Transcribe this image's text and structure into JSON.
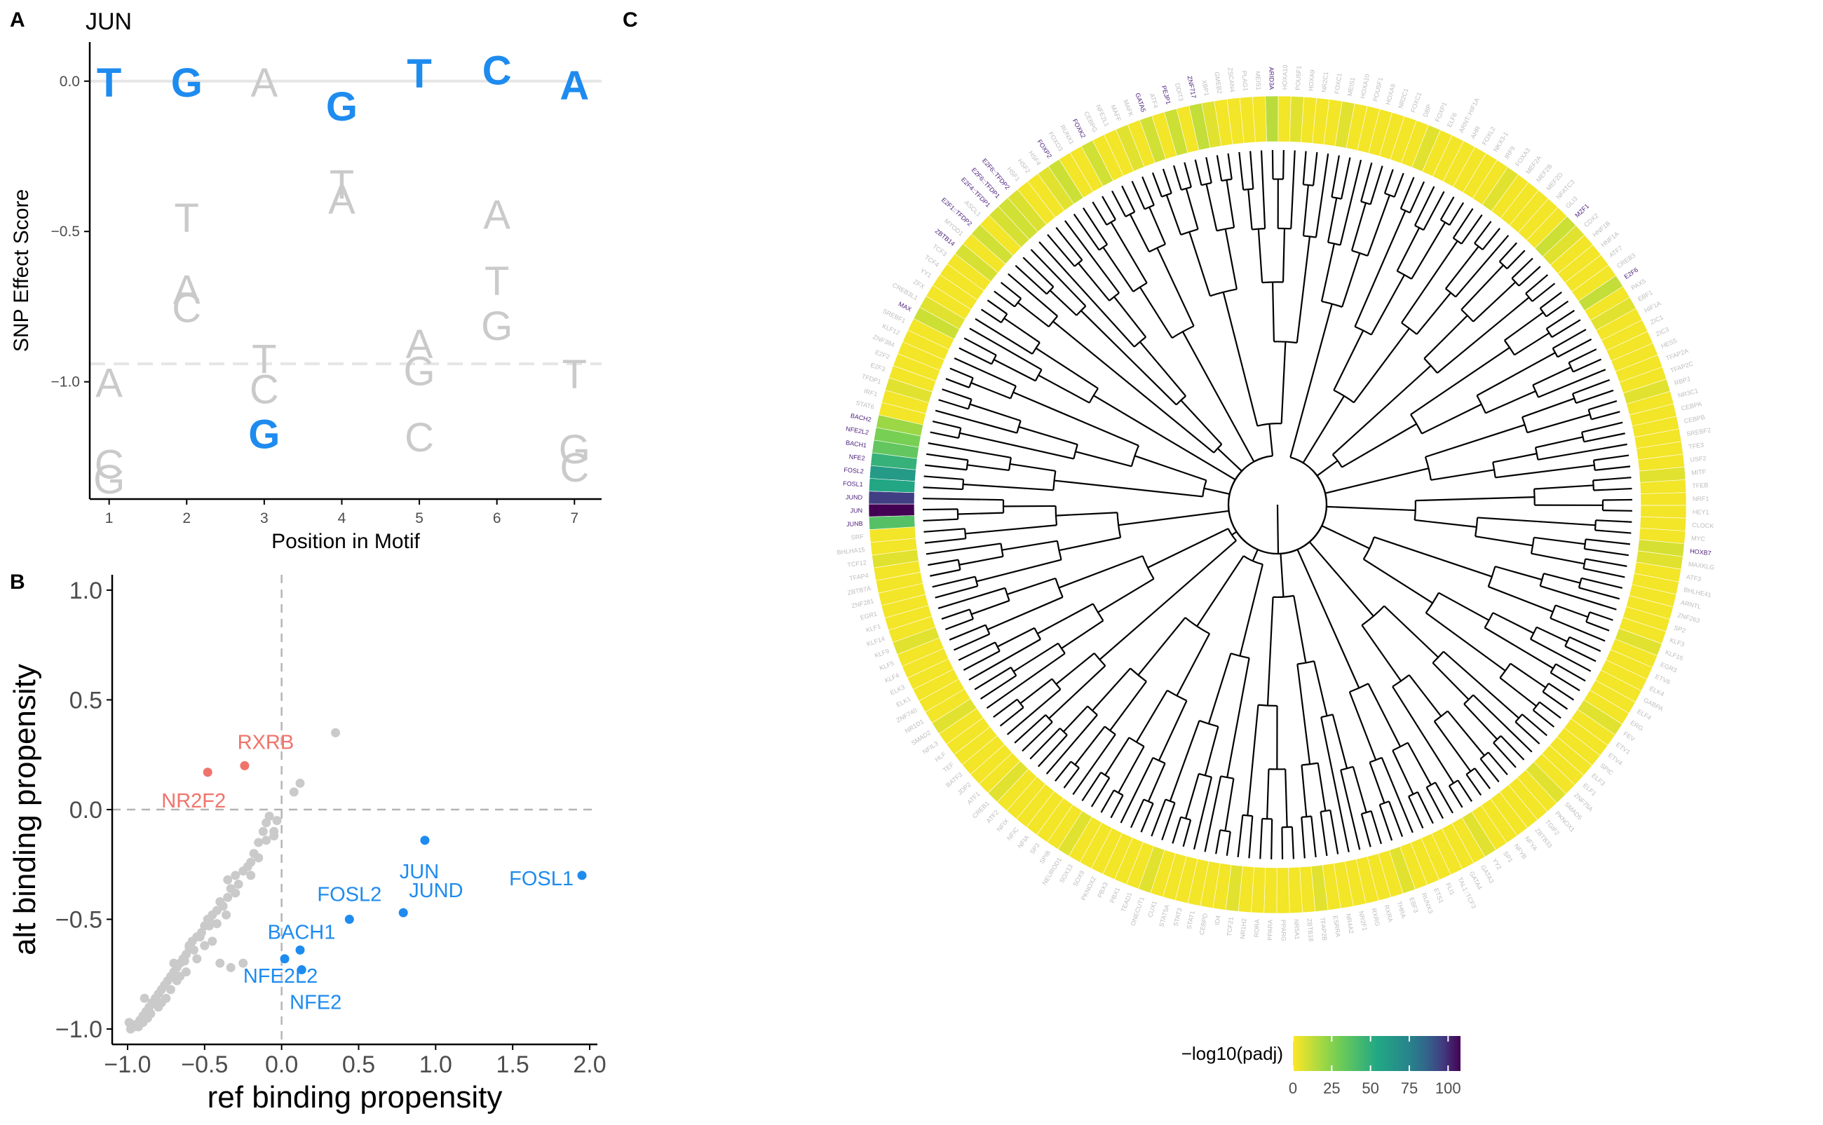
{
  "panels": {
    "a": {
      "letter": "A",
      "title": "JUN"
    },
    "b": {
      "letter": "B"
    },
    "c": {
      "letter": "C"
    }
  },
  "colors": {
    "blue": "#1E8BEF",
    "red": "#F0736B",
    "grey": "#CACACA",
    "grey_text": "#C9C9C9",
    "label_purple": "#4B1E7A"
  },
  "chart_data": [
    {
      "id": "snp-effect-logo",
      "type": "scatter",
      "title": "JUN",
      "xlabel": "Position in Motif",
      "ylabel": "SNP Effect Score",
      "xlim": [
        0.75,
        7.35
      ],
      "ylim": [
        -1.39,
        0.13
      ],
      "x_ticks": [
        1,
        2,
        3,
        4,
        5,
        6,
        7
      ],
      "y_ticks": [
        0.0,
        -0.5,
        -1.0
      ],
      "y_tick_labels": [
        "0.0",
        "−0.5",
        "−1.0"
      ],
      "reference_lines": [
        {
          "y": 0.0,
          "style": "solid"
        },
        {
          "y": -0.94,
          "style": "dashed"
        }
      ],
      "reference_bases": [
        {
          "position": 1,
          "base": "T",
          "score": 0.0
        },
        {
          "position": 2,
          "base": "G",
          "score": 0.0
        },
        {
          "position": 3,
          "base": "A",
          "score": 0.0
        },
        {
          "position": 4,
          "base": "G",
          "score": -0.08
        },
        {
          "position": 5,
          "base": "T",
          "score": 0.03
        },
        {
          "position": 6,
          "base": "C",
          "score": 0.04
        },
        {
          "position": 7,
          "base": "A",
          "score": -0.01
        }
      ],
      "alternate_bases": [
        {
          "position": 1,
          "base": "A",
          "score": -1.0,
          "highlight": false
        },
        {
          "position": 1,
          "base": "C",
          "score": -1.27,
          "highlight": false
        },
        {
          "position": 1,
          "base": "G",
          "score": -1.32,
          "highlight": false
        },
        {
          "position": 2,
          "base": "T",
          "score": -0.45,
          "highlight": false
        },
        {
          "position": 2,
          "base": "A",
          "score": -0.69,
          "highlight": false
        },
        {
          "position": 2,
          "base": "C",
          "score": -0.75,
          "highlight": false
        },
        {
          "position": 3,
          "base": "T",
          "score": -0.92,
          "highlight": false
        },
        {
          "position": 3,
          "base": "C",
          "score": -1.02,
          "highlight": false
        },
        {
          "position": 3,
          "base": "G",
          "score": -1.17,
          "highlight": true
        },
        {
          "position": 4,
          "base": "T",
          "score": -0.34,
          "highlight": false
        },
        {
          "position": 4,
          "base": "A",
          "score": -0.39,
          "highlight": false
        },
        {
          "position": 5,
          "base": "A",
          "score": -0.87,
          "highlight": false
        },
        {
          "position": 5,
          "base": "G",
          "score": -0.96,
          "highlight": false
        },
        {
          "position": 5,
          "base": "C",
          "score": -1.18,
          "highlight": false
        },
        {
          "position": 6,
          "base": "A",
          "score": -0.44,
          "highlight": false
        },
        {
          "position": 6,
          "base": "T",
          "score": -0.66,
          "highlight": false
        },
        {
          "position": 6,
          "base": "G",
          "score": -0.81,
          "highlight": false
        },
        {
          "position": 7,
          "base": "T",
          "score": -0.97,
          "highlight": false
        },
        {
          "position": 7,
          "base": "G",
          "score": -1.22,
          "highlight": false
        },
        {
          "position": 7,
          "base": "C",
          "score": -1.28,
          "highlight": false
        }
      ]
    },
    {
      "id": "binding-propensity-scatter",
      "type": "scatter",
      "xlabel": "ref binding propensity",
      "ylabel": "alt binding propensity",
      "xlim": [
        -1.1,
        2.05
      ],
      "ylim": [
        -1.07,
        1.07
      ],
      "x_ticks": [
        -1.0,
        -0.5,
        0.0,
        0.5,
        1.0,
        1.5,
        2.0
      ],
      "x_tick_labels": [
        "−1.0",
        "−0.5",
        "0.0",
        "0.5",
        "1.0",
        "1.5",
        "2.0"
      ],
      "y_ticks": [
        -1.0,
        -0.5,
        0.0,
        0.5,
        1.0
      ],
      "y_tick_labels": [
        "−1.0",
        "−0.5",
        "0.0",
        "0.5",
        "1.0"
      ],
      "reference_lines": [
        {
          "x": 0.0,
          "style": "dashed"
        },
        {
          "y": 0.0,
          "style": "dashed"
        }
      ],
      "labeled_points": [
        {
          "label": "FOSL1",
          "x": 1.95,
          "y": -0.3,
          "group": "decreased"
        },
        {
          "label": "JUN",
          "x": 0.93,
          "y": -0.14,
          "group": "decreased"
        },
        {
          "label": "JUND",
          "x": 0.79,
          "y": -0.47,
          "group": "decreased"
        },
        {
          "label": "FOSL2",
          "x": 0.44,
          "y": -0.5,
          "group": "decreased"
        },
        {
          "label": "BACH1",
          "x": 0.12,
          "y": -0.64,
          "group": "decreased"
        },
        {
          "label": "NFE2L2",
          "x": 0.02,
          "y": -0.68,
          "group": "decreased"
        },
        {
          "label": "NFE2",
          "x": 0.13,
          "y": -0.73,
          "group": "decreased"
        },
        {
          "label": "RXRB",
          "x": -0.24,
          "y": 0.2,
          "group": "increased"
        },
        {
          "label": "NR2F2",
          "x": -0.48,
          "y": 0.17,
          "group": "increased"
        }
      ],
      "other_points": [
        [
          0.35,
          0.35
        ],
        [
          0.12,
          0.12
        ],
        [
          0.08,
          0.08
        ],
        [
          -0.08,
          -0.03
        ],
        [
          -0.1,
          -0.06
        ],
        [
          -0.12,
          -0.1
        ],
        [
          -0.15,
          -0.15
        ],
        [
          -0.05,
          -0.12
        ],
        [
          -0.2,
          -0.24
        ],
        [
          -0.25,
          -0.28
        ],
        [
          -0.3,
          -0.3
        ],
        [
          -0.33,
          -0.36
        ],
        [
          -0.35,
          -0.4
        ],
        [
          -0.4,
          -0.42
        ],
        [
          -0.42,
          -0.46
        ],
        [
          -0.45,
          -0.48
        ],
        [
          -0.48,
          -0.5
        ],
        [
          -0.5,
          -0.53
        ],
        [
          -0.52,
          -0.56
        ],
        [
          -0.55,
          -0.58
        ],
        [
          -0.58,
          -0.6
        ],
        [
          -0.6,
          -0.63
        ],
        [
          -0.62,
          -0.66
        ],
        [
          -0.64,
          -0.68
        ],
        [
          -0.66,
          -0.7
        ],
        [
          -0.68,
          -0.72
        ],
        [
          -0.7,
          -0.74
        ],
        [
          -0.72,
          -0.76
        ],
        [
          -0.74,
          -0.78
        ],
        [
          -0.76,
          -0.8
        ],
        [
          -0.78,
          -0.82
        ],
        [
          -0.8,
          -0.84
        ],
        [
          -0.82,
          -0.86
        ],
        [
          -0.84,
          -0.88
        ],
        [
          -0.86,
          -0.9
        ],
        [
          -0.88,
          -0.92
        ],
        [
          -0.9,
          -0.94
        ],
        [
          -0.92,
          -0.96
        ],
        [
          -0.95,
          -0.98
        ],
        [
          -0.98,
          -1.0
        ],
        [
          -0.6,
          -0.62
        ],
        [
          -0.63,
          -0.69
        ],
        [
          -0.7,
          -0.7
        ],
        [
          -0.55,
          -0.68
        ],
        [
          -0.72,
          -0.82
        ],
        [
          -0.5,
          -0.62
        ],
        [
          -0.45,
          -0.6
        ],
        [
          -0.3,
          -0.38
        ],
        [
          -0.35,
          -0.32
        ],
        [
          -0.2,
          -0.3
        ],
        [
          -0.05,
          -0.1
        ],
        [
          -0.15,
          -0.22
        ],
        [
          -0.42,
          -0.52
        ],
        [
          -0.47,
          -0.53
        ],
        [
          -0.4,
          -0.7
        ],
        [
          -0.33,
          -0.72
        ],
        [
          -0.25,
          -0.7
        ],
        [
          -0.8,
          -0.9
        ],
        [
          -0.85,
          -0.93
        ],
        [
          -0.9,
          -0.97
        ],
        [
          -0.93,
          -0.99
        ],
        [
          -0.96,
          -0.99
        ],
        [
          -0.99,
          -0.97
        ],
        [
          -0.89,
          -0.86
        ],
        [
          -0.87,
          -0.95
        ],
        [
          -0.78,
          -0.88
        ],
        [
          -0.75,
          -0.86
        ],
        [
          -0.68,
          -0.78
        ],
        [
          -0.66,
          -0.76
        ],
        [
          -0.62,
          -0.74
        ],
        [
          -0.57,
          -0.64
        ],
        [
          -0.53,
          -0.58
        ],
        [
          -0.47,
          -0.5
        ],
        [
          -0.38,
          -0.44
        ],
        [
          -0.36,
          -0.48
        ],
        [
          -0.28,
          -0.34
        ],
        [
          -0.22,
          -0.26
        ],
        [
          -0.18,
          -0.2
        ],
        [
          -0.1,
          -0.14
        ],
        [
          -0.03,
          -0.05
        ]
      ]
    },
    {
      "id": "tf-dendrogram-heatmap",
      "type": "heatmap",
      "legend": {
        "title": "−log10(padj)",
        "ticks": [
          0,
          25,
          50,
          75,
          100
        ],
        "tick_labels": [
          "0",
          "25",
          "50",
          "75",
          "100"
        ],
        "range": [
          0,
          108
        ]
      },
      "highlighted_tfs": [
        {
          "label": "JUNB",
          "value": 38
        },
        {
          "label": "JUN",
          "value": 108
        },
        {
          "label": "JUND",
          "value": 96
        },
        {
          "label": "FOSL1",
          "value": 55
        },
        {
          "label": "FOSL2",
          "value": 62
        },
        {
          "label": "NFE2",
          "value": 48
        },
        {
          "label": "BACH1",
          "value": 34
        },
        {
          "label": "NFE2L2",
          "value": 28
        },
        {
          "label": "BACH2",
          "value": 20
        },
        {
          "label": "MAX",
          "value": 10
        },
        {
          "label": "ZBTB14",
          "value": 8
        },
        {
          "label": "E2F1::TFDP2",
          "value": 9
        },
        {
          "label": "E2F4::TFDP1",
          "value": 8
        },
        {
          "label": "E2F6::TFDP1",
          "value": 9
        },
        {
          "label": "E2F6::TFDP2",
          "value": 7
        },
        {
          "label": "FOXP2",
          "value": 10
        },
        {
          "label": "FOXK2",
          "value": 9
        },
        {
          "label": "HOXB7",
          "value": 8
        },
        {
          "label": "E2F6",
          "value": 12
        },
        {
          "label": "MZF1",
          "value": 10
        },
        {
          "label": "ARID3A",
          "value": 14
        },
        {
          "label": "ZNF717",
          "value": 12
        },
        {
          "label": "PEJP1",
          "value": 10
        },
        {
          "label": "GATA5",
          "value": 9
        }
      ],
      "other_tf_labels": [
        "MEIS1",
        "HOXA10",
        "POU5F1",
        "HOXA9",
        "NR2C1",
        "FOXC1",
        "DBP",
        "FOXP1",
        "ELF6",
        "ARNT::HIF1A",
        "AHR",
        "FOXL2",
        "NKX3-1",
        "IRF9",
        "FOXA3",
        "MEF2A",
        "MEF2B",
        "MEF2D",
        "NFATC3",
        "GLI3",
        "CDX2",
        "HNF1B",
        "HNF1A",
        "ATF7",
        "CREB3",
        "PAX5",
        "EBF1",
        "HIF1A",
        "ZIC1",
        "ZIC3",
        "HES5",
        "TFAP2A",
        "TFAP2C",
        "RBPJ",
        "NR3C1",
        "CEBPA",
        "CEBPB",
        "SREBF2",
        "TFE3",
        "USF2",
        "MITF",
        "TFEB",
        "NRF1",
        "HEY1",
        "CLOCK",
        "MYC",
        "MAXKLG",
        "ATF3",
        "BHLHE41",
        "ARNTL",
        "ZNF263",
        "SP2",
        "KLF3",
        "KLF16",
        "EGR3",
        "ETV6",
        "ELK4",
        "GABPA",
        "ELF4",
        "ERG",
        "FEV",
        "ETV1",
        "ETV4",
        "SPIC",
        "ELF3",
        "ELF1",
        "ZNF75A",
        "SMAD5",
        "PKNOX1",
        "TGIF2",
        "ZBTB33",
        "NFYA",
        "NFYB",
        "SP1",
        "YY2",
        "GATA3",
        "GATA4",
        "TAL1::TCF3",
        "FLI1",
        "ETS1",
        "RUNX3",
        "EBF3",
        "THRA",
        "RXRA",
        "RXRG",
        "NR2F1",
        "NR4A2",
        "ESRRA",
        "TFAP2B",
        "ZBTB18",
        "NR5A1",
        "PPARG",
        "PPARA",
        "RORA",
        "NR1H2",
        "TCF21",
        "ID4",
        "CEBPD",
        "STAT1",
        "STAT3",
        "STAT5A",
        "CUX1",
        "ONECUT1",
        "TEAD1",
        "PBX1",
        "PBX3",
        "PKNOX2",
        "SOX9",
        "SOX13",
        "NEUROD1",
        "SPIB",
        "SP3",
        "NFIA",
        "NFIC",
        "NFIX",
        "ATF2",
        "CREB1",
        "ATF1",
        "JDP2",
        "BATF3",
        "TEF",
        "HLF",
        "NFIL3",
        "SMAD2",
        "NR1D1",
        "ZNF740",
        "ELK1",
        "ELK3",
        "KLF4",
        "KLF5",
        "KLF9",
        "KLF14",
        "KLF1",
        "EGR1",
        "ZNF281",
        "ZBTB7A",
        "TFAP4",
        "TCF12",
        "BHLHA15",
        "SRF",
        "STAT6",
        "IRF1",
        "TFDP1",
        "E2F3",
        "E2F2",
        "ZNF384",
        "KLF12",
        "SREBF1",
        "CREB3L1",
        "ZFX",
        "YY1",
        "TCF4",
        "TCF3",
        "MYOD1",
        "ASCL1",
        "HSF1",
        "HSF2",
        "HSF4",
        "FOXO3",
        "RUNX1",
        "CEBPG",
        "NFE2L1",
        "MAFF",
        "MAFK",
        "ATF4",
        "DDIT3",
        "XBP1",
        "GMEB2",
        "ZSCAN4",
        "PLAG1"
      ]
    }
  ]
}
